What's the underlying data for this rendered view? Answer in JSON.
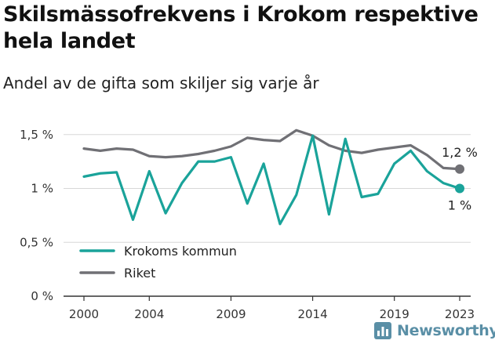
{
  "title": "Skilsmässofrekvens i Krokom respektive hela landet",
  "subtitle": "Andel av de gifta som skiljer sig varje år",
  "brand": "Newsworthy",
  "colors": {
    "krokom": "#1aa39a",
    "riket": "#707075",
    "grid": "#d8d8d8",
    "axis": "#333333"
  },
  "chart_data": {
    "type": "line",
    "x": [
      2000,
      2001,
      2002,
      2003,
      2004,
      2005,
      2006,
      2007,
      2008,
      2009,
      2010,
      2011,
      2012,
      2013,
      2014,
      2015,
      2016,
      2017,
      2018,
      2019,
      2020,
      2021,
      2022,
      2023
    ],
    "xticks": [
      2000,
      2004,
      2009,
      2014,
      2019,
      2023
    ],
    "yticks": [
      0,
      0.5,
      1,
      1.5
    ],
    "ytick_labels": [
      "0 %",
      "0,5 %",
      "1 %",
      "1,5 %"
    ],
    "ylim": [
      0,
      1.6
    ],
    "xlim": [
      2000,
      2023
    ],
    "series": [
      {
        "name": "Krokoms kommun",
        "color": "#1aa39a",
        "values": [
          1.11,
          1.14,
          1.15,
          0.71,
          1.16,
          0.77,
          1.05,
          1.25,
          1.25,
          1.29,
          0.86,
          1.23,
          0.67,
          0.94,
          1.49,
          0.76,
          1.46,
          0.92,
          0.95,
          1.23,
          1.35,
          1.16,
          1.05,
          1.0
        ],
        "end_label": "1 %"
      },
      {
        "name": "Riket",
        "color": "#707075",
        "values": [
          1.37,
          1.35,
          1.37,
          1.36,
          1.3,
          1.29,
          1.3,
          1.32,
          1.35,
          1.39,
          1.47,
          1.45,
          1.44,
          1.54,
          1.49,
          1.4,
          1.35,
          1.33,
          1.36,
          1.38,
          1.4,
          1.31,
          1.19,
          1.18
        ],
        "end_label": "1,2 %"
      }
    ],
    "legend": "bottom-left",
    "grid": true
  }
}
